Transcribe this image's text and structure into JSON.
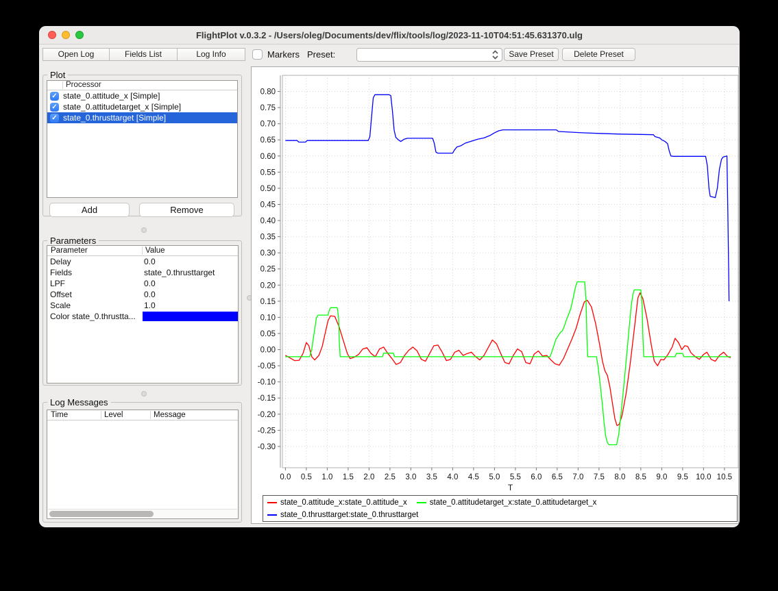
{
  "window": {
    "title": "FlightPlot v.0.3.2 - /Users/oleg/Documents/dev/flix/tools/log/2023-11-10T04:51:45.631370.ulg"
  },
  "toolbar": {
    "open_log": "Open Log",
    "fields_list": "Fields List",
    "log_info": "Log Info",
    "markers_label": "Markers",
    "markers_checked": false,
    "preset_label": "Preset:",
    "preset_value": "",
    "save_preset": "Save Preset",
    "delete_preset": "Delete Preset"
  },
  "plot_panel": {
    "title": "Plot",
    "column_header": "Processor",
    "rows": [
      {
        "label": "state_0.attitude_x [Simple]",
        "checked": true,
        "selected": false
      },
      {
        "label": "state_0.attitudetarget_x [Simple]",
        "checked": true,
        "selected": false
      },
      {
        "label": "state_0.thrusttarget [Simple]",
        "checked": true,
        "selected": true
      }
    ],
    "selection_color": "#2664d9",
    "checkbox_color": "#3478f6",
    "add_label": "Add",
    "remove_label": "Remove"
  },
  "parameters_panel": {
    "title": "Parameters",
    "columns": [
      "Parameter",
      "Value"
    ],
    "rows": [
      {
        "name": "Delay",
        "value": "0.0"
      },
      {
        "name": "Fields",
        "value": "state_0.thrusttarget"
      },
      {
        "name": "LPF",
        "value": "0.0"
      },
      {
        "name": "Offset",
        "value": "0.0"
      },
      {
        "name": "Scale",
        "value": "1.0"
      }
    ],
    "color_row": {
      "name": "Color state_0.thrustta...",
      "color": "#0000ff"
    }
  },
  "log_panel": {
    "title": "Log Messages",
    "columns": [
      "Time",
      "Level",
      "Message"
    ],
    "rows": []
  },
  "chart_data": {
    "type": "line",
    "xlabel": "T",
    "ylabel": "",
    "grid": true,
    "legend_position": "bottom",
    "xlim": [
      -0.072,
      10.83
    ],
    "ylim": [
      -0.366,
      0.85
    ],
    "xticks": [
      0.0,
      0.5,
      1.0,
      1.5,
      2.0,
      2.5,
      3.0,
      3.5,
      4.0,
      4.5,
      5.0,
      5.5,
      6.0,
      6.5,
      7.0,
      7.5,
      8.0,
      8.5,
      9.0,
      9.5,
      10.0,
      10.5
    ],
    "yticks": [
      -0.3,
      -0.25,
      -0.2,
      -0.15,
      -0.1,
      -0.05,
      0.0,
      0.05,
      0.1,
      0.15,
      0.2,
      0.25,
      0.3,
      0.35,
      0.4,
      0.45,
      0.5,
      0.55,
      0.6,
      0.65,
      0.7,
      0.75,
      0.8
    ],
    "series": [
      {
        "name": "state_0.attitude_x:state_0.attitude_x",
        "color": "#ff0000",
        "points": [
          [
            0.0,
            -0.018
          ],
          [
            0.1,
            -0.025
          ],
          [
            0.22,
            -0.034
          ],
          [
            0.33,
            -0.033
          ],
          [
            0.42,
            -0.012
          ],
          [
            0.5,
            0.022
          ],
          [
            0.56,
            0.012
          ],
          [
            0.63,
            -0.022
          ],
          [
            0.7,
            -0.032
          ],
          [
            0.8,
            -0.018
          ],
          [
            0.88,
            0.01
          ],
          [
            0.95,
            0.05
          ],
          [
            1.02,
            0.09
          ],
          [
            1.08,
            0.105
          ],
          [
            1.18,
            0.103
          ],
          [
            1.28,
            0.072
          ],
          [
            1.38,
            0.03
          ],
          [
            1.48,
            -0.012
          ],
          [
            1.55,
            -0.028
          ],
          [
            1.65,
            -0.023
          ],
          [
            1.75,
            -0.015
          ],
          [
            1.85,
            0.002
          ],
          [
            1.95,
            0.006
          ],
          [
            2.05,
            -0.012
          ],
          [
            2.15,
            -0.022
          ],
          [
            2.25,
            0.002
          ],
          [
            2.35,
            0.008
          ],
          [
            2.45,
            -0.012
          ],
          [
            2.55,
            -0.028
          ],
          [
            2.65,
            -0.046
          ],
          [
            2.75,
            -0.04
          ],
          [
            2.85,
            -0.018
          ],
          [
            2.95,
            -0.002
          ],
          [
            3.05,
            0.008
          ],
          [
            3.15,
            -0.004
          ],
          [
            3.25,
            -0.03
          ],
          [
            3.35,
            -0.036
          ],
          [
            3.45,
            -0.012
          ],
          [
            3.55,
            0.012
          ],
          [
            3.65,
            0.014
          ],
          [
            3.75,
            -0.008
          ],
          [
            3.85,
            -0.034
          ],
          [
            3.95,
            -0.03
          ],
          [
            4.05,
            -0.008
          ],
          [
            4.15,
            -0.002
          ],
          [
            4.25,
            -0.018
          ],
          [
            4.35,
            -0.012
          ],
          [
            4.45,
            -0.008
          ],
          [
            4.55,
            -0.022
          ],
          [
            4.65,
            -0.032
          ],
          [
            4.75,
            -0.018
          ],
          [
            4.85,
            0.006
          ],
          [
            4.95,
            0.03
          ],
          [
            5.05,
            0.018
          ],
          [
            5.15,
            -0.012
          ],
          [
            5.25,
            -0.04
          ],
          [
            5.35,
            -0.044
          ],
          [
            5.45,
            -0.018
          ],
          [
            5.55,
            0.002
          ],
          [
            5.65,
            -0.006
          ],
          [
            5.75,
            -0.04
          ],
          [
            5.85,
            -0.044
          ],
          [
            5.95,
            -0.014
          ],
          [
            6.05,
            -0.004
          ],
          [
            6.15,
            -0.02
          ],
          [
            6.25,
            -0.018
          ],
          [
            6.35,
            -0.032
          ],
          [
            6.45,
            -0.044
          ],
          [
            6.55,
            -0.048
          ],
          [
            6.65,
            -0.028
          ],
          [
            6.75,
            0.002
          ],
          [
            6.85,
            0.032
          ],
          [
            6.95,
            0.065
          ],
          [
            7.05,
            0.11
          ],
          [
            7.15,
            0.148
          ],
          [
            7.22,
            0.153
          ],
          [
            7.32,
            0.132
          ],
          [
            7.42,
            0.08
          ],
          [
            7.52,
            0.012
          ],
          [
            7.58,
            -0.035
          ],
          [
            7.64,
            -0.065
          ],
          [
            7.7,
            -0.08
          ],
          [
            7.76,
            -0.115
          ],
          [
            7.82,
            -0.165
          ],
          [
            7.88,
            -0.215
          ],
          [
            7.93,
            -0.235
          ],
          [
            7.98,
            -0.232
          ],
          [
            8.05,
            -0.205
          ],
          [
            8.15,
            -0.135
          ],
          [
            8.25,
            -0.04
          ],
          [
            8.35,
            0.07
          ],
          [
            8.43,
            0.16
          ],
          [
            8.48,
            0.176
          ],
          [
            8.55,
            0.158
          ],
          [
            8.65,
            0.095
          ],
          [
            8.75,
            0.015
          ],
          [
            8.82,
            -0.035
          ],
          [
            8.9,
            -0.05
          ],
          [
            8.98,
            -0.03
          ],
          [
            9.05,
            -0.032
          ],
          [
            9.15,
            -0.015
          ],
          [
            9.25,
            0.008
          ],
          [
            9.32,
            0.035
          ],
          [
            9.4,
            0.022
          ],
          [
            9.48,
            0.0
          ],
          [
            9.55,
            0.012
          ],
          [
            9.62,
            0.01
          ],
          [
            9.7,
            -0.01
          ],
          [
            9.8,
            -0.022
          ],
          [
            9.9,
            -0.03
          ],
          [
            10.0,
            -0.015
          ],
          [
            10.08,
            -0.008
          ],
          [
            10.18,
            -0.03
          ],
          [
            10.28,
            -0.036
          ],
          [
            10.38,
            -0.018
          ],
          [
            10.48,
            -0.008
          ],
          [
            10.58,
            -0.022
          ],
          [
            10.65,
            -0.025
          ]
        ]
      },
      {
        "name": "state_0.attitudetarget_x:state_0.attitudetarget_x",
        "color": "#00ff00",
        "points": [
          [
            0.0,
            -0.022
          ],
          [
            0.58,
            -0.022
          ],
          [
            0.6,
            -0.012
          ],
          [
            0.63,
            0.0
          ],
          [
            0.66,
            0.03
          ],
          [
            0.7,
            0.062
          ],
          [
            0.74,
            0.098
          ],
          [
            0.78,
            0.107
          ],
          [
            1.02,
            0.107
          ],
          [
            1.05,
            0.122
          ],
          [
            1.08,
            0.13
          ],
          [
            1.24,
            0.13
          ],
          [
            1.27,
            0.1
          ],
          [
            1.29,
            0.02
          ],
          [
            1.31,
            -0.022
          ],
          [
            2.32,
            -0.022
          ],
          [
            2.35,
            -0.011
          ],
          [
            2.58,
            -0.011
          ],
          [
            2.61,
            -0.022
          ],
          [
            6.33,
            -0.022
          ],
          [
            6.37,
            -0.008
          ],
          [
            6.42,
            0.012
          ],
          [
            6.47,
            0.032
          ],
          [
            6.52,
            0.042
          ],
          [
            6.57,
            0.052
          ],
          [
            6.62,
            0.058
          ],
          [
            6.67,
            0.072
          ],
          [
            6.72,
            0.092
          ],
          [
            6.77,
            0.108
          ],
          [
            6.82,
            0.125
          ],
          [
            6.87,
            0.152
          ],
          [
            6.91,
            0.178
          ],
          [
            6.95,
            0.2
          ],
          [
            6.98,
            0.21
          ],
          [
            7.16,
            0.21
          ],
          [
            7.19,
            0.15
          ],
          [
            7.21,
            0.04
          ],
          [
            7.23,
            -0.022
          ],
          [
            7.44,
            -0.022
          ],
          [
            7.48,
            -0.055
          ],
          [
            7.53,
            -0.11
          ],
          [
            7.58,
            -0.17
          ],
          [
            7.62,
            -0.225
          ],
          [
            7.66,
            -0.268
          ],
          [
            7.7,
            -0.288
          ],
          [
            7.74,
            -0.295
          ],
          [
            7.92,
            -0.295
          ],
          [
            7.97,
            -0.265
          ],
          [
            8.03,
            -0.195
          ],
          [
            8.09,
            -0.115
          ],
          [
            8.14,
            -0.048
          ],
          [
            8.18,
            0.01
          ],
          [
            8.23,
            0.08
          ],
          [
            8.27,
            0.135
          ],
          [
            8.31,
            0.17
          ],
          [
            8.34,
            0.185
          ],
          [
            8.5,
            0.185
          ],
          [
            8.53,
            0.14
          ],
          [
            8.55,
            0.04
          ],
          [
            8.57,
            -0.022
          ],
          [
            9.32,
            -0.022
          ],
          [
            9.35,
            -0.012
          ],
          [
            9.5,
            -0.012
          ],
          [
            9.53,
            -0.022
          ],
          [
            10.65,
            -0.022
          ]
        ]
      },
      {
        "name": "state_0.thrusttarget:state_0.thrusttarget",
        "color": "#0000ff",
        "points": [
          [
            0.0,
            0.648
          ],
          [
            0.28,
            0.648
          ],
          [
            0.32,
            0.643
          ],
          [
            0.48,
            0.643
          ],
          [
            0.52,
            0.648
          ],
          [
            1.98,
            0.648
          ],
          [
            2.02,
            0.66
          ],
          [
            2.06,
            0.72
          ],
          [
            2.1,
            0.78
          ],
          [
            2.14,
            0.79
          ],
          [
            2.48,
            0.79
          ],
          [
            2.52,
            0.787
          ],
          [
            2.56,
            0.74
          ],
          [
            2.6,
            0.68
          ],
          [
            2.64,
            0.658
          ],
          [
            2.7,
            0.65
          ],
          [
            2.76,
            0.645
          ],
          [
            2.84,
            0.652
          ],
          [
            2.92,
            0.655
          ],
          [
            3.52,
            0.655
          ],
          [
            3.56,
            0.64
          ],
          [
            3.6,
            0.612
          ],
          [
            3.64,
            0.609
          ],
          [
            4.0,
            0.609
          ],
          [
            4.04,
            0.618
          ],
          [
            4.1,
            0.628
          ],
          [
            4.2,
            0.632
          ],
          [
            4.3,
            0.64
          ],
          [
            4.45,
            0.646
          ],
          [
            4.6,
            0.652
          ],
          [
            4.75,
            0.656
          ],
          [
            4.9,
            0.664
          ],
          [
            5.0,
            0.672
          ],
          [
            5.1,
            0.678
          ],
          [
            5.2,
            0.681
          ],
          [
            6.48,
            0.681
          ],
          [
            6.53,
            0.676
          ],
          [
            6.8,
            0.674
          ],
          [
            7.1,
            0.672
          ],
          [
            7.5,
            0.67
          ],
          [
            8.0,
            0.668
          ],
          [
            8.4,
            0.667
          ],
          [
            8.8,
            0.666
          ],
          [
            8.84,
            0.66
          ],
          [
            8.95,
            0.656
          ],
          [
            9.0,
            0.65
          ],
          [
            9.08,
            0.645
          ],
          [
            9.14,
            0.638
          ],
          [
            9.18,
            0.615
          ],
          [
            9.22,
            0.6
          ],
          [
            9.28,
            0.599
          ],
          [
            10.05,
            0.599
          ],
          [
            10.09,
            0.57
          ],
          [
            10.13,
            0.5
          ],
          [
            10.16,
            0.475
          ],
          [
            10.28,
            0.471
          ],
          [
            10.33,
            0.5
          ],
          [
            10.38,
            0.56
          ],
          [
            10.43,
            0.59
          ],
          [
            10.47,
            0.597
          ],
          [
            10.56,
            0.6
          ],
          [
            10.58,
            0.43
          ],
          [
            10.6,
            0.25
          ],
          [
            10.61,
            0.15
          ]
        ]
      }
    ]
  }
}
